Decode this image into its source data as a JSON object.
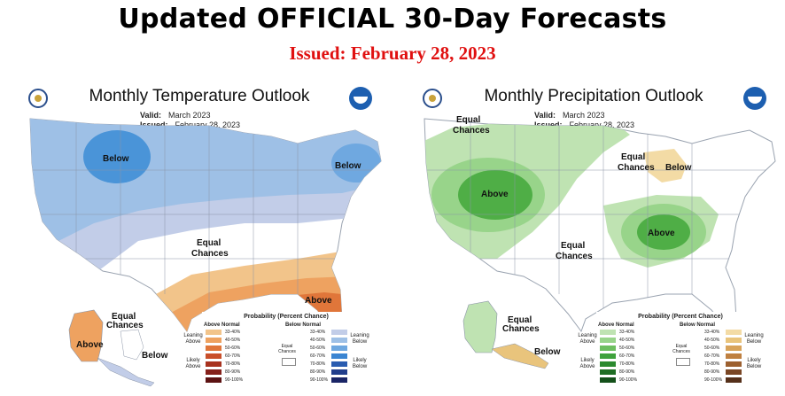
{
  "header": {
    "title": "Updated OFFICIAL 30-Day Forecasts",
    "issued": "Issued: February 28, 2023"
  },
  "temperature": {
    "title": "Monthly Temperature Outlook",
    "valid_label": "Valid:",
    "valid_value": "March 2023",
    "issued_label": "Issued:",
    "issued_value": "February 28, 2023",
    "regions": {
      "below_nw": "Below",
      "below_ne": "Below",
      "equal_center_1": "Equal",
      "equal_center_2": "Chances",
      "above_se": "Above",
      "ak_equal_1": "Equal",
      "ak_equal_2": "Chances",
      "ak_above": "Above",
      "ak_below": "Below"
    }
  },
  "precipitation": {
    "title": "Monthly Precipitation Outlook",
    "valid_label": "Valid:",
    "valid_value": "March 2023",
    "issued_label": "Issued:",
    "issued_value": "February 28, 2023",
    "regions": {
      "equal_nw_1": "Equal",
      "equal_nw_2": "Chances",
      "above_west": "Above",
      "above_ohio": "Above",
      "equal_gl_1": "Equal",
      "equal_gl_2": "Chances",
      "below_gl": "Below",
      "equal_south_1": "Equal",
      "equal_south_2": "Chances",
      "ak_equal_1": "Equal",
      "ak_equal_2": "Chances",
      "ak_below": "Below"
    }
  },
  "legend": {
    "title": "Probability (Percent Chance)",
    "temp_above_header": "Above Normal",
    "temp_below_header": "Below Normal",
    "precip_above_header": "Above Normal",
    "precip_below_header": "Below Normal",
    "ranges": [
      "33-40%",
      "40-50%",
      "50-60%",
      "60-70%",
      "70-80%",
      "80-90%",
      "90-100%"
    ],
    "temp_leaning_above": "Leaning Above",
    "temp_leaning_below": "Leaning Below",
    "temp_likely_above": "Likely Above",
    "temp_likely_below": "Likely Below",
    "precip_leaning_above": "Leaning Above",
    "precip_leaning_below": "Leaning Below",
    "precip_likely_above": "Likely Above",
    "precip_likely_below": "Likely Below",
    "equal_chances": "Equal Chances",
    "colors": {
      "temp_above": [
        "#f2c48a",
        "#eea260",
        "#e0763a",
        "#c94f2a",
        "#a8321f",
        "#85201a",
        "#5c1212"
      ],
      "temp_below": [
        "#c2cde8",
        "#9ec0e6",
        "#6fa8e0",
        "#3b85d2",
        "#2a5cb0",
        "#213e8c",
        "#1a2566"
      ],
      "precip_above": [
        "#bfe3b2",
        "#98d48a",
        "#6dbf60",
        "#3fa23d",
        "#2b8a2f",
        "#1f6e24",
        "#14501a"
      ],
      "precip_below": [
        "#f3dba5",
        "#e9c47c",
        "#d8a35a",
        "#bf8040",
        "#9c6030",
        "#7a4624",
        "#55301a"
      ]
    }
  }
}
